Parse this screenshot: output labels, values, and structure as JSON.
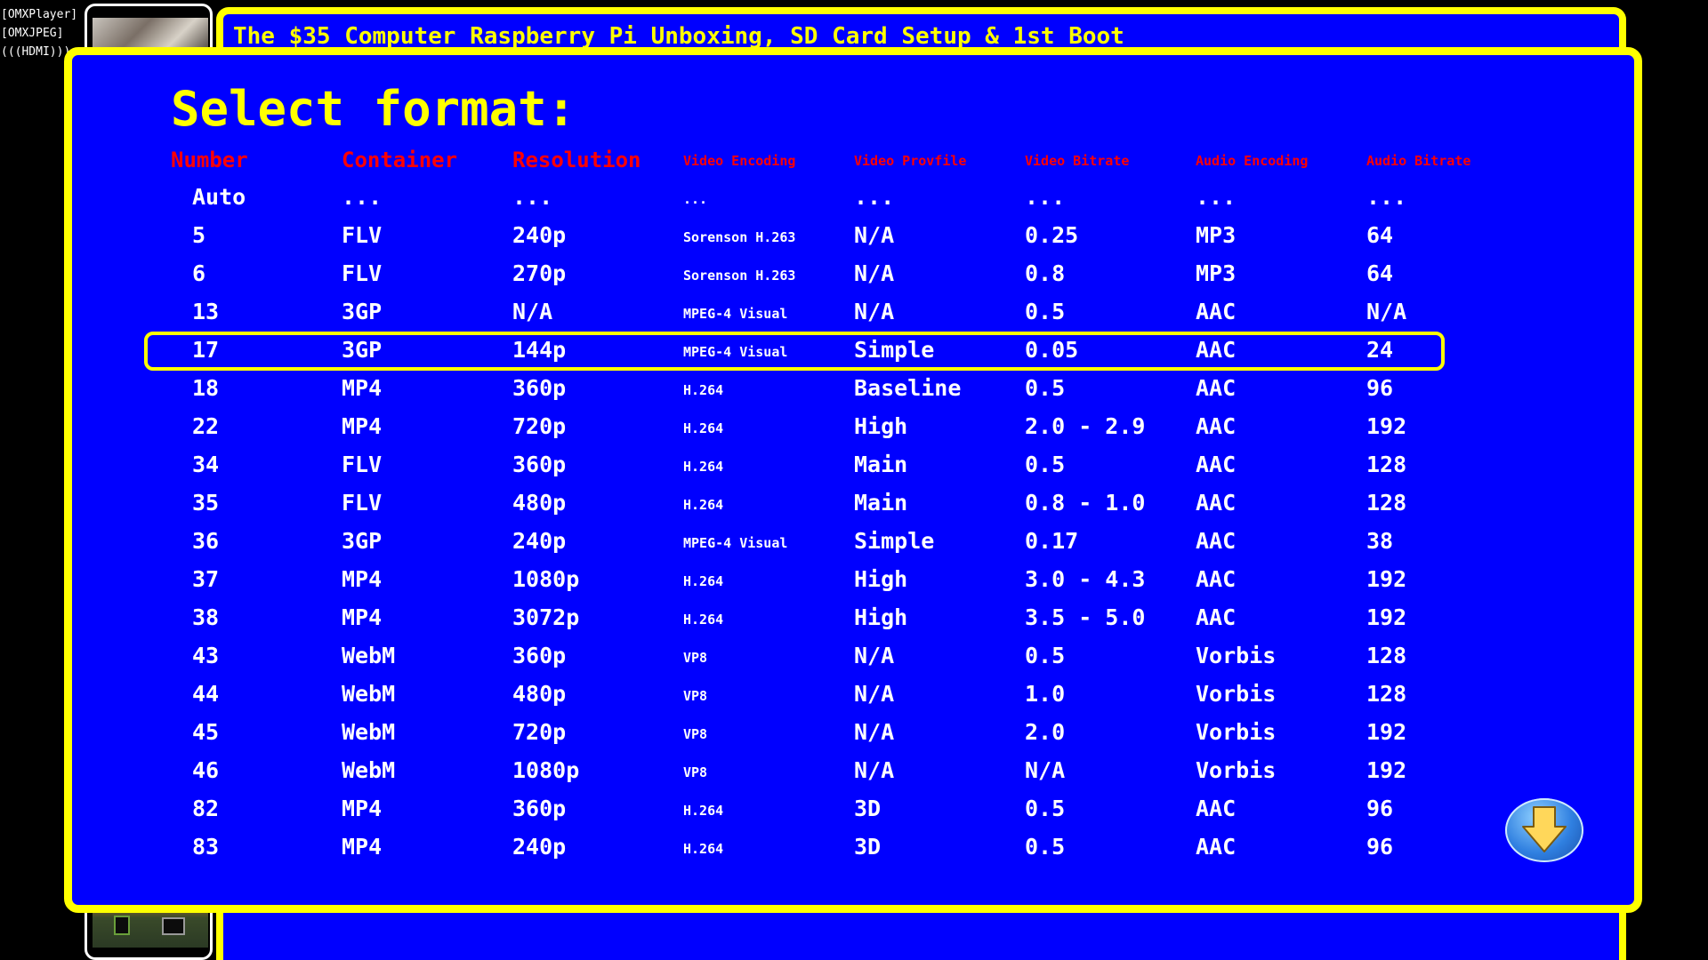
{
  "status_lines": [
    "[OMXPlayer]",
    "[OMXJPEG]",
    "(((HDMI)))"
  ],
  "background": {
    "video_title": "The $35 Computer Raspberry Pi Unboxing, SD Card Setup & 1st Boot"
  },
  "dialog": {
    "title": "Select format:",
    "headers": {
      "number": "Number",
      "container": "Container",
      "resolution": "Resolution",
      "video_encoding": "Video Encoding",
      "video_profile": "Video Provfile",
      "video_bitrate": "Video Bitrate",
      "audio_encoding": "Audio Encoding",
      "audio_bitrate": "Audio Bitrate"
    },
    "selected_index": 4,
    "rows": [
      {
        "number": "Auto",
        "container": "...",
        "resolution": "...",
        "video_encoding": "...",
        "video_profile": "...",
        "video_bitrate": "...",
        "audio_encoding": "...",
        "audio_bitrate": "..."
      },
      {
        "number": "5",
        "container": "FLV",
        "resolution": "240p",
        "video_encoding": "Sorenson H.263",
        "video_profile": "N/A",
        "video_bitrate": "0.25",
        "audio_encoding": "MP3",
        "audio_bitrate": "64"
      },
      {
        "number": "6",
        "container": "FLV",
        "resolution": "270p",
        "video_encoding": "Sorenson H.263",
        "video_profile": "N/A",
        "video_bitrate": "0.8",
        "audio_encoding": "MP3",
        "audio_bitrate": "64"
      },
      {
        "number": "13",
        "container": "3GP",
        "resolution": "N/A",
        "video_encoding": "MPEG-4 Visual",
        "video_profile": "N/A",
        "video_bitrate": "0.5",
        "audio_encoding": "AAC",
        "audio_bitrate": "N/A"
      },
      {
        "number": "17",
        "container": "3GP",
        "resolution": "144p",
        "video_encoding": "MPEG-4 Visual",
        "video_profile": "Simple",
        "video_bitrate": "0.05",
        "audio_encoding": "AAC",
        "audio_bitrate": "24"
      },
      {
        "number": "18",
        "container": "MP4",
        "resolution": "360p",
        "video_encoding": "H.264",
        "video_profile": "Baseline",
        "video_bitrate": "0.5",
        "audio_encoding": "AAC",
        "audio_bitrate": "96"
      },
      {
        "number": "22",
        "container": "MP4",
        "resolution": "720p",
        "video_encoding": "H.264",
        "video_profile": "High",
        "video_bitrate": "2.0 - 2.9",
        "audio_encoding": "AAC",
        "audio_bitrate": "192"
      },
      {
        "number": "34",
        "container": "FLV",
        "resolution": "360p",
        "video_encoding": "H.264",
        "video_profile": "Main",
        "video_bitrate": "0.5",
        "audio_encoding": "AAC",
        "audio_bitrate": "128"
      },
      {
        "number": "35",
        "container": "FLV",
        "resolution": "480p",
        "video_encoding": "H.264",
        "video_profile": "Main",
        "video_bitrate": "0.8 - 1.0",
        "audio_encoding": "AAC",
        "audio_bitrate": "128"
      },
      {
        "number": "36",
        "container": "3GP",
        "resolution": "240p",
        "video_encoding": "MPEG-4 Visual",
        "video_profile": "Simple",
        "video_bitrate": "0.17",
        "audio_encoding": "AAC",
        "audio_bitrate": "38"
      },
      {
        "number": "37",
        "container": "MP4",
        "resolution": "1080p",
        "video_encoding": "H.264",
        "video_profile": "High",
        "video_bitrate": "3.0 - 4.3",
        "audio_encoding": "AAC",
        "audio_bitrate": "192"
      },
      {
        "number": "38",
        "container": "MP4",
        "resolution": "3072p",
        "video_encoding": "H.264",
        "video_profile": "High",
        "video_bitrate": "3.5 - 5.0",
        "audio_encoding": "AAC",
        "audio_bitrate": "192"
      },
      {
        "number": "43",
        "container": "WebM",
        "resolution": "360p",
        "video_encoding": "VP8",
        "video_profile": "N/A",
        "video_bitrate": "0.5",
        "audio_encoding": "Vorbis",
        "audio_bitrate": "128"
      },
      {
        "number": "44",
        "container": "WebM",
        "resolution": "480p",
        "video_encoding": "VP8",
        "video_profile": "N/A",
        "video_bitrate": "1.0",
        "audio_encoding": "Vorbis",
        "audio_bitrate": "128"
      },
      {
        "number": "45",
        "container": "WebM",
        "resolution": "720p",
        "video_encoding": "VP8",
        "video_profile": "N/A",
        "video_bitrate": "2.0",
        "audio_encoding": "Vorbis",
        "audio_bitrate": "192"
      },
      {
        "number": "46",
        "container": "WebM",
        "resolution": "1080p",
        "video_encoding": "VP8",
        "video_profile": "N/A",
        "video_bitrate": "N/A",
        "audio_encoding": "Vorbis",
        "audio_bitrate": "192"
      },
      {
        "number": "82",
        "container": "MP4",
        "resolution": "360p",
        "video_encoding": "H.264",
        "video_profile": "3D",
        "video_bitrate": "0.5",
        "audio_encoding": "AAC",
        "audio_bitrate": "96"
      },
      {
        "number": "83",
        "container": "MP4",
        "resolution": "240p",
        "video_encoding": "H.264",
        "video_profile": "3D",
        "video_bitrate": "0.5",
        "audio_encoding": "AAC",
        "audio_bitrate": "96"
      }
    ],
    "scroll_icon": "down-arrow-icon"
  },
  "colors": {
    "background": "#000000",
    "panel": "#0000ff",
    "accent": "#ffff00",
    "header_text": "#ff0000",
    "text": "#ffffff"
  }
}
